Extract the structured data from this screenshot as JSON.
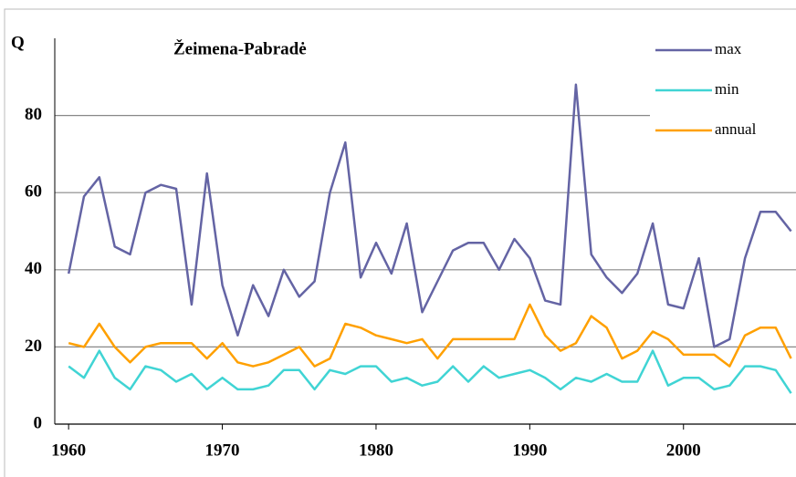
{
  "chart_data": {
    "type": "line",
    "title": "Žeimena-Pabradė",
    "ylabel": "Q",
    "x": [
      1960,
      1961,
      1962,
      1963,
      1964,
      1965,
      1966,
      1967,
      1968,
      1969,
      1970,
      1971,
      1972,
      1973,
      1974,
      1975,
      1976,
      1977,
      1978,
      1979,
      1980,
      1981,
      1982,
      1983,
      1984,
      1985,
      1986,
      1987,
      1988,
      1989,
      1990,
      1991,
      1992,
      1993,
      1994,
      1995,
      1996,
      1997,
      1998,
      1999,
      2000,
      2001,
      2002,
      2003,
      2004,
      2005,
      2006,
      2007
    ],
    "series": [
      {
        "name": "max",
        "color": "#6464a4",
        "values": [
          39,
          59,
          64,
          46,
          44,
          60,
          62,
          61,
          31,
          65,
          36,
          23,
          36,
          28,
          40,
          33,
          37,
          60,
          73,
          38,
          47,
          39,
          52,
          29,
          37,
          45,
          47,
          47,
          40,
          48,
          43,
          32,
          31,
          88,
          44,
          38,
          34,
          39,
          52,
          31,
          30,
          43,
          20,
          22,
          43,
          55,
          55,
          50
        ]
      },
      {
        "name": "min",
        "color": "#40d4d4",
        "values": [
          15,
          12,
          19,
          12,
          9,
          15,
          14,
          11,
          13,
          9,
          12,
          9,
          9,
          10,
          14,
          14,
          9,
          14,
          13,
          15,
          15,
          11,
          12,
          10,
          11,
          15,
          11,
          15,
          12,
          13,
          14,
          12,
          9,
          12,
          11,
          13,
          11,
          11,
          19,
          10,
          12,
          12,
          9,
          10,
          15,
          15,
          14,
          8
        ]
      },
      {
        "name": "annual",
        "color": "#ffa000",
        "values": [
          21,
          20,
          26,
          20,
          16,
          20,
          21,
          21,
          21,
          17,
          21,
          16,
          15,
          16,
          18,
          20,
          15,
          17,
          26,
          25,
          23,
          22,
          21,
          22,
          17,
          22,
          22,
          22,
          22,
          22,
          31,
          23,
          19,
          21,
          28,
          25,
          17,
          19,
          24,
          22,
          18,
          18,
          18,
          15,
          23,
          25,
          25,
          17
        ]
      }
    ],
    "xlim": [
      1959.1,
      2007.2
    ],
    "xticks": [
      1960,
      1970,
      1980,
      1990,
      2000
    ],
    "ylim": [
      0,
      100
    ],
    "yticks": [
      0,
      20,
      40,
      60,
      80
    ],
    "grid": true,
    "legend": "upper right"
  }
}
